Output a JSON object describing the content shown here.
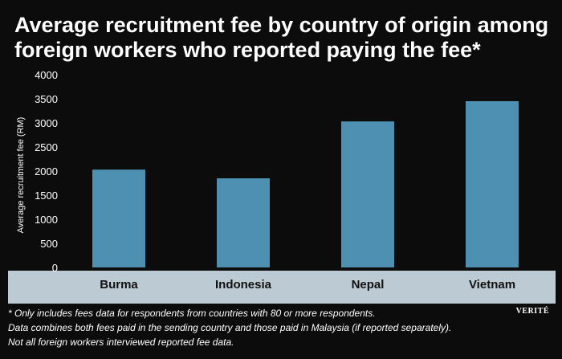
{
  "title_lines": [
    "Average recruitment fee by country of origin among",
    "foreign workers who reported paying the fee*"
  ],
  "chart_data": {
    "type": "bar",
    "title": "Average recruitment fee by country of origin among foreign workers who reported paying the fee*",
    "ylabel": "Average recruitment fee (RM)",
    "xlabel": "",
    "categories": [
      "Burma",
      "Indonesia",
      "Nepal",
      "Vietnam"
    ],
    "values": [
      2030,
      1850,
      3030,
      3450
    ],
    "ylim": [
      0,
      4000
    ],
    "yticks": [
      0,
      500,
      1000,
      1500,
      2000,
      2500,
      3000,
      3500,
      4000
    ],
    "grid": false,
    "legend": "none",
    "bar_color": "#4e90b2",
    "axis_band_color": "#bccad3"
  },
  "footnote": [
    "* Only includes fees data for respondents from countries with 80 or more respondents.",
    "Data combines both fees paid in the sending country and those paid in Malaysia (if reported separately).",
    "Not all foreign workers interviewed reported fee data."
  ],
  "brand": "VERITÉ"
}
